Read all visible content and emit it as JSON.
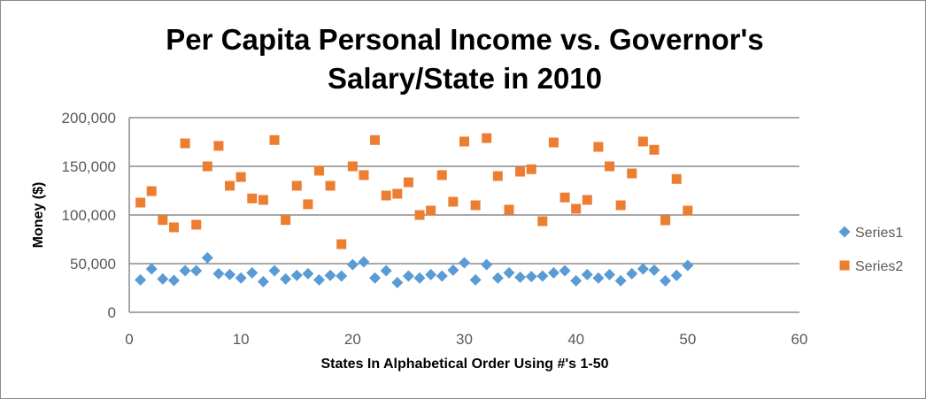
{
  "chart_data": {
    "type": "scatter",
    "title_lines": [
      "Per Capita Personal Income vs. Governor's",
      "Salary/State in 2010"
    ],
    "xlabel": "States In Alphabetical Order Using #'s 1-50",
    "ylabel": "Money ($)",
    "xlim": [
      0,
      60
    ],
    "ylim": [
      0,
      200000
    ],
    "x_ticks": [
      0,
      10,
      20,
      30,
      40,
      50,
      60
    ],
    "x_tick_labels": [
      "0",
      "10",
      "20",
      "30",
      "40",
      "50",
      "60"
    ],
    "y_ticks": [
      0,
      50000,
      100000,
      150000,
      200000
    ],
    "y_tick_labels": [
      "0",
      "50,000",
      "100,000",
      "150,000",
      "200,000"
    ],
    "grid": "horizontal",
    "legend_position": "right",
    "series": [
      {
        "name": "Series1",
        "marker": "diamond",
        "color": "#5b9bd5",
        "x": [
          1,
          2,
          3,
          4,
          5,
          6,
          7,
          8,
          9,
          10,
          11,
          12,
          13,
          14,
          15,
          16,
          17,
          18,
          19,
          20,
          21,
          22,
          23,
          24,
          25,
          26,
          27,
          28,
          29,
          30,
          31,
          32,
          33,
          34,
          35,
          36,
          37,
          38,
          39,
          40,
          41,
          42,
          43,
          44,
          45,
          46,
          47,
          48,
          49,
          50
        ],
        "y": [
          33300,
          44500,
          34200,
          32700,
          42700,
          42700,
          56000,
          39700,
          38800,
          35200,
          40600,
          31500,
          42700,
          34200,
          37900,
          39700,
          33300,
          37900,
          37300,
          49000,
          51800,
          35200,
          42700,
          30600,
          37300,
          35200,
          38800,
          37300,
          43300,
          50900,
          33300,
          49000,
          35200,
          40600,
          36000,
          36700,
          37300,
          40600,
          42700,
          32400,
          38800,
          35200,
          38800,
          32400,
          39700,
          44500,
          43300,
          32400,
          37900,
          48200
        ]
      },
      {
        "name": "Series2",
        "marker": "square",
        "color": "#ed7d31",
        "x": [
          1,
          2,
          3,
          4,
          5,
          6,
          7,
          8,
          9,
          10,
          11,
          12,
          13,
          14,
          15,
          16,
          17,
          18,
          19,
          20,
          21,
          22,
          23,
          24,
          25,
          26,
          27,
          28,
          29,
          30,
          31,
          32,
          33,
          34,
          35,
          36,
          37,
          38,
          39,
          40,
          41,
          42,
          43,
          44,
          45,
          46,
          47,
          48,
          49,
          50
        ],
        "y": [
          112700,
          124500,
          94800,
          87300,
          173600,
          90000,
          150000,
          171000,
          130000,
          139000,
          117000,
          115500,
          177000,
          94800,
          130000,
          111000,
          145500,
          130000,
          70000,
          150000,
          141000,
          177000,
          120000,
          121800,
          133600,
          100000,
          104500,
          141000,
          113600,
          175500,
          110000,
          179000,
          140000,
          105500,
          144500,
          147000,
          93600,
          174500,
          118000,
          106400,
          115500,
          170000,
          150000,
          110000,
          142700,
          175500,
          167000,
          94500,
          137000,
          104500
        ]
      }
    ]
  }
}
